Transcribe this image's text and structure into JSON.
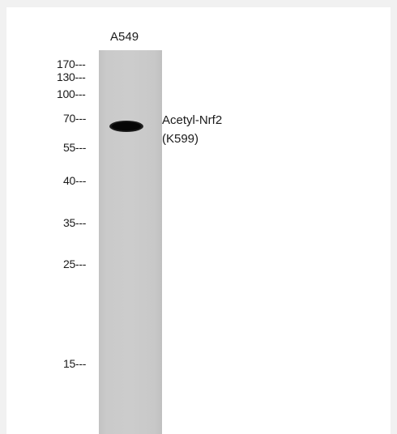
{
  "lane_label": "A549",
  "markers": [
    "170---",
    "130---",
    "100---",
    "70---",
    "55---",
    "40---",
    "35---",
    "25---",
    "15---"
  ],
  "target": {
    "line1": "Acetyl-Nrf2",
    "line2": "(K599)"
  },
  "colors": {
    "background": "#f1f1f1",
    "panel": "#ffffff",
    "lane": "#cccccc",
    "band": "#060606",
    "text": "#1a1a1a"
  }
}
